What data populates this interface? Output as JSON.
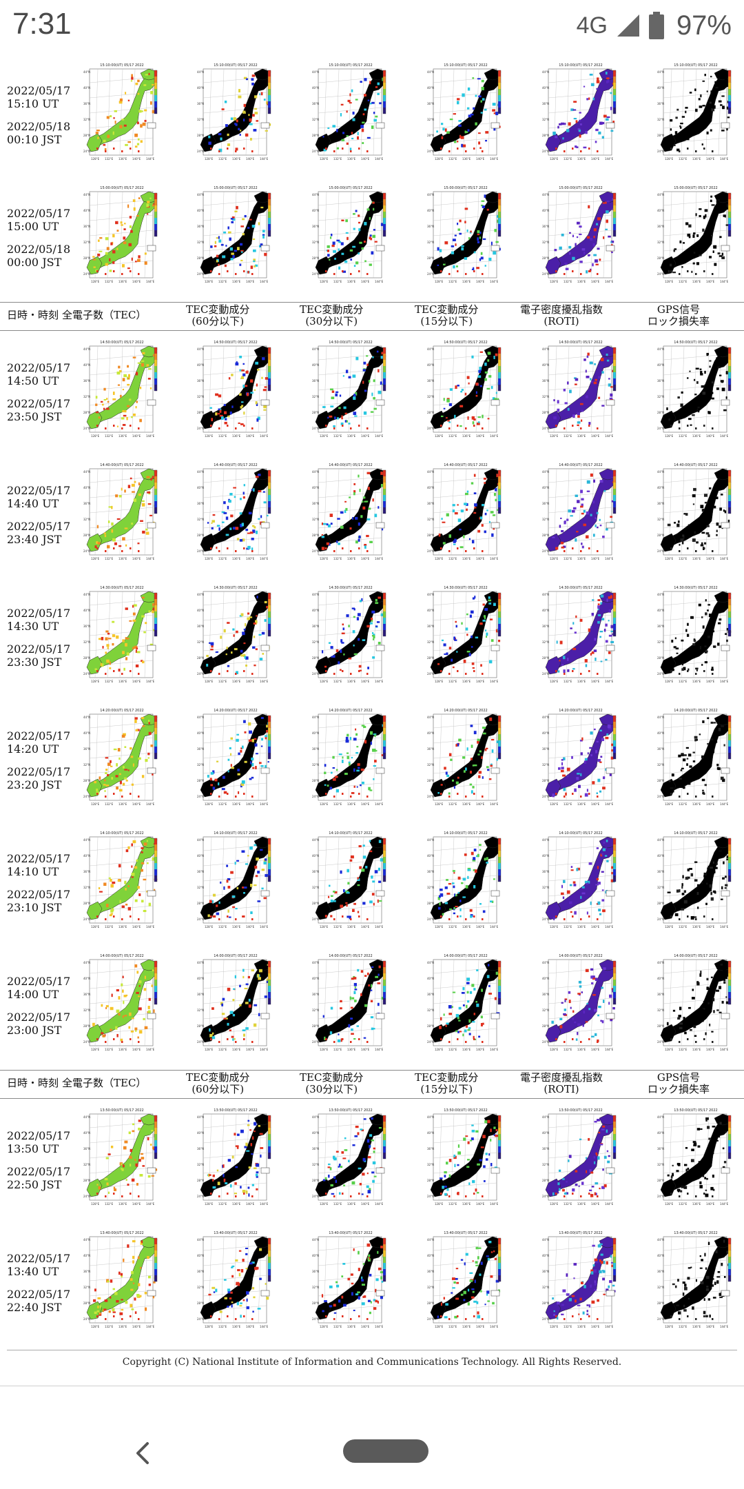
{
  "status_bar": {
    "time": "7:31",
    "network": "4G",
    "battery": "97%"
  },
  "headers": [
    {
      "line1": "日時・時刻",
      "line2": ""
    },
    {
      "line1": "全電子数（TEC）",
      "line2": ""
    },
    {
      "line1": "TEC変動成分",
      "line2": "(60分以下)"
    },
    {
      "line1": "TEC変動成分",
      "line2": "(30分以下)"
    },
    {
      "line1": "TEC変動成分",
      "line2": "(15分以下)"
    },
    {
      "line1": "電子密度擾乱指数",
      "line2": "(ROTI)"
    },
    {
      "line1": "GPS信号",
      "line2": "ロック損失率"
    }
  ],
  "rows": [
    {
      "ut_date": "2022/05/17",
      "ut_time": "15:10 UT",
      "jst_date": "2022/05/18",
      "jst_time": "00:10 JST",
      "map_title": "15:10:00(UT) 05/17 2022"
    },
    {
      "ut_date": "2022/05/17",
      "ut_time": "15:00 UT",
      "jst_date": "2022/05/18",
      "jst_time": "00:00 JST",
      "map_title": "15:00:00(UT) 05/17 2022"
    },
    {
      "ut_date": "2022/05/17",
      "ut_time": "14:50 UT",
      "jst_date": "2022/05/17",
      "jst_time": "23:50 JST",
      "map_title": "14:50:00(UT) 05/17 2022"
    },
    {
      "ut_date": "2022/05/17",
      "ut_time": "14:40 UT",
      "jst_date": "2022/05/17",
      "jst_time": "23:40 JST",
      "map_title": "14:40:00(UT) 05/17 2022"
    },
    {
      "ut_date": "2022/05/17",
      "ut_time": "14:30 UT",
      "jst_date": "2022/05/17",
      "jst_time": "23:30 JST",
      "map_title": "14:30:00(UT) 05/17 2022"
    },
    {
      "ut_date": "2022/05/17",
      "ut_time": "14:20 UT",
      "jst_date": "2022/05/17",
      "jst_time": "23:20 JST",
      "map_title": "14:20:00(UT) 05/17 2022"
    },
    {
      "ut_date": "2022/05/17",
      "ut_time": "14:10 UT",
      "jst_date": "2022/05/17",
      "jst_time": "23:10 JST",
      "map_title": "14:10:00(UT) 05/17 2022"
    },
    {
      "ut_date": "2022/05/17",
      "ut_time": "14:00 UT",
      "jst_date": "2022/05/17",
      "jst_time": "23:00 JST",
      "map_title": "14:00:00(UT) 05/17 2022"
    },
    {
      "ut_date": "2022/05/17",
      "ut_time": "13:50 UT",
      "jst_date": "2022/05/17",
      "jst_time": "22:50 JST",
      "map_title": "13:50:00(UT) 05/17 2022"
    },
    {
      "ut_date": "2022/05/17",
      "ut_time": "13:40 UT",
      "jst_date": "2022/05/17",
      "jst_time": "22:40 JST",
      "map_title": "13:40:00(UT) 05/17 2022"
    }
  ],
  "map_axis": {
    "lat_ticks": [
      "44°N",
      "40°N",
      "36°N",
      "32°N",
      "28°N",
      "24°N"
    ],
    "lon_ticks": [
      "128°E",
      "132°E",
      "136°E",
      "140°E",
      "144°E"
    ]
  },
  "map_columns": [
    {
      "kind": "tec",
      "colors": [
        "#7fd23a",
        "#c7e83a",
        "#f5c52a",
        "#f08a24",
        "#e0301e"
      ]
    },
    {
      "kind": "dtec60",
      "colors": [
        "#000000",
        "#1a2bd8",
        "#27c7e0",
        "#e0d23a",
        "#e0301e"
      ]
    },
    {
      "kind": "dtec30",
      "colors": [
        "#000000",
        "#1a2bd8",
        "#27c7e0",
        "#58d04a",
        "#e0301e"
      ]
    },
    {
      "kind": "dtec15",
      "colors": [
        "#000000",
        "#1a2bd8",
        "#27c7e0",
        "#58d04a",
        "#e0301e"
      ]
    },
    {
      "kind": "roti",
      "colors": [
        "#4b1fa8",
        "#5a26c0",
        "#6a35d0",
        "#2bb6d8",
        "#e0301e"
      ]
    },
    {
      "kind": "loss",
      "colors": [
        "#000000",
        "#000000",
        "#111111",
        "#000000",
        "#222222"
      ]
    }
  ],
  "copyright": "Copyright (C) National Institute of Information and Communications Technology. All Rights Reserved."
}
